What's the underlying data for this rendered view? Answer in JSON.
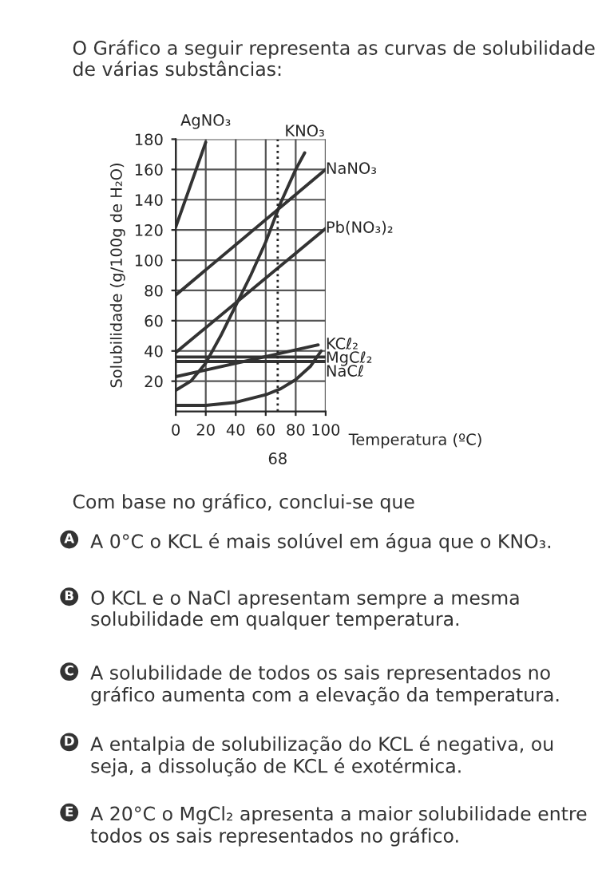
{
  "chart_data": {
    "type": "line",
    "title": "O Gráfico a seguir representa as curvas de solubilidade de várias substâncias:",
    "xlabel": "Temperatura (ºC)",
    "ylabel": "Solubilidade (g/100g de H₂O)",
    "xlim": [
      0,
      100
    ],
    "xticks": [
      0,
      20,
      40,
      60,
      80,
      100
    ],
    "ylim": [
      0,
      180
    ],
    "yticks": [
      20,
      40,
      60,
      80,
      100,
      120,
      140,
      160,
      180
    ],
    "grid": true,
    "legend": false,
    "marker": "none",
    "line_style": "solid",
    "series": [
      {
        "name": "AgNO₃",
        "color": "#333333",
        "x": [
          0,
          10,
          20
        ],
        "values": [
          122,
          150,
          178
        ]
      },
      {
        "name": "KNO₃",
        "color": "#333333",
        "x": [
          0,
          10,
          20,
          30,
          40,
          50,
          60,
          70,
          80,
          86
        ],
        "values": [
          14,
          20,
          32,
          50,
          70,
          90,
          112,
          138,
          160,
          171
        ]
      },
      {
        "name": "NaNO₃",
        "color": "#333333",
        "x": [
          0,
          100
        ],
        "values": [
          77,
          160
        ]
      },
      {
        "name": "Pb(NO₃)₂",
        "color": "#333333",
        "x": [
          0,
          100
        ],
        "values": [
          39,
          121
        ]
      },
      {
        "name": "KCℓ₂",
        "color": "#333333",
        "x": [
          0,
          95
        ],
        "values": [
          23,
          44
        ]
      },
      {
        "name": "MgCℓ₂",
        "color": "#333333",
        "x": [
          0,
          100
        ],
        "values": [
          36,
          36
        ]
      },
      {
        "name": "NaCℓ",
        "color": "#333333",
        "x": [
          0,
          100
        ],
        "values": [
          33,
          33
        ]
      },
      {
        "color": "#333333",
        "x": [
          0,
          20,
          40,
          60,
          70,
          80,
          90,
          97
        ],
        "values": [
          4,
          4,
          6,
          11,
          15,
          21,
          30,
          40
        ]
      }
    ],
    "ref_lines": [
      {
        "axis": "x",
        "value": 68,
        "label": "68",
        "line_style": "dotted"
      }
    ],
    "annotations": [
      "Com base no gráfico, conclui-se que",
      "A A 0°C o KCL é mais solúvel em água que o KNO₃.",
      "B O KCL e o NaCl apresentam sempre a mesma solubilidade em qualquer temperatura.",
      "C A solubilidade de todos os sais representados no gráfico aumenta com a elevação da temperatura.",
      "D A entalpia de solubilização do KCL é negativa, ou seja, a dissolução de KCL é exotérmica.",
      "E A 20°C o MgCl₂ apresenta a maior solubilidade entre todos os sais representados no gráfico."
    ]
  }
}
